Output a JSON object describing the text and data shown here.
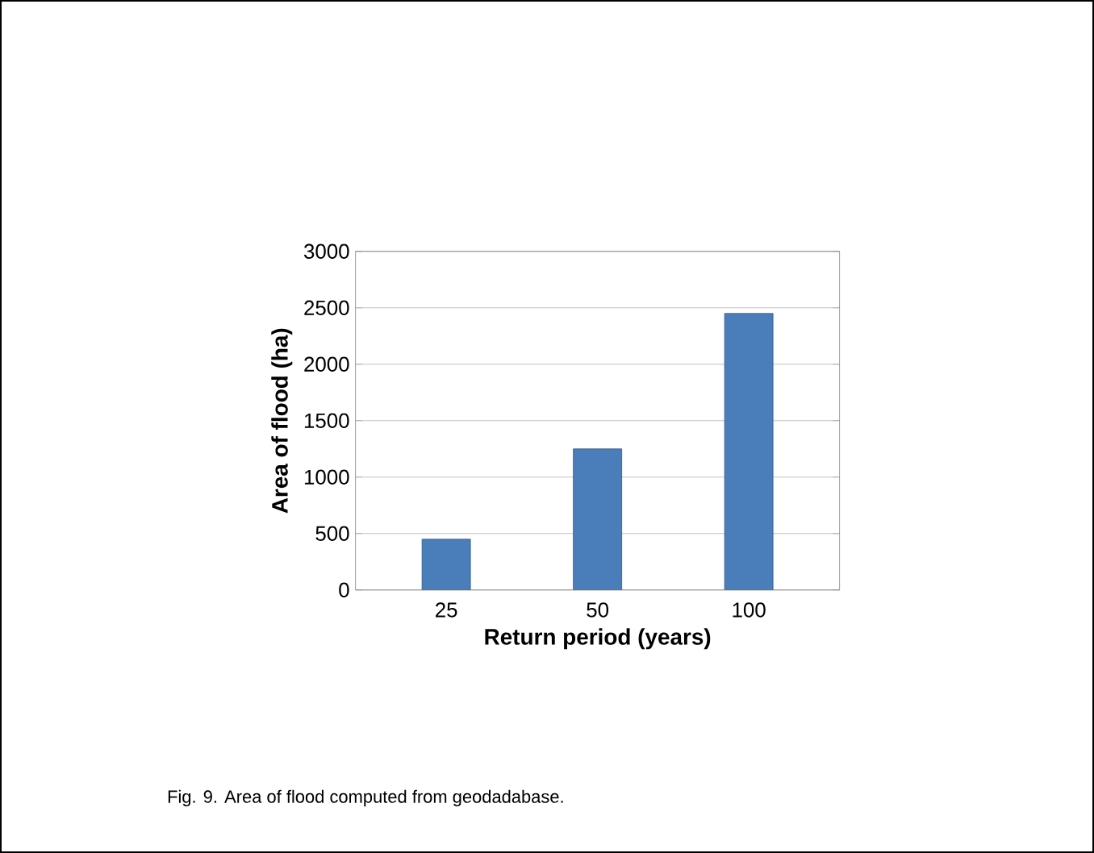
{
  "chart_data": {
    "type": "bar",
    "xlabel": "Return period (years)",
    "ylabel": "Area of flood (ha)",
    "categories": [
      "25",
      "50",
      "100"
    ],
    "values": [
      450,
      1250,
      2450
    ],
    "color": "#4a7ebb",
    "ylim": [
      0,
      3000
    ],
    "yticks": [
      0,
      500,
      1000,
      1500,
      2000,
      2500,
      3000
    ],
    "grid": "y",
    "annotations": [
      "Fig. 9. Area of flood computed from geodadabase."
    ]
  }
}
